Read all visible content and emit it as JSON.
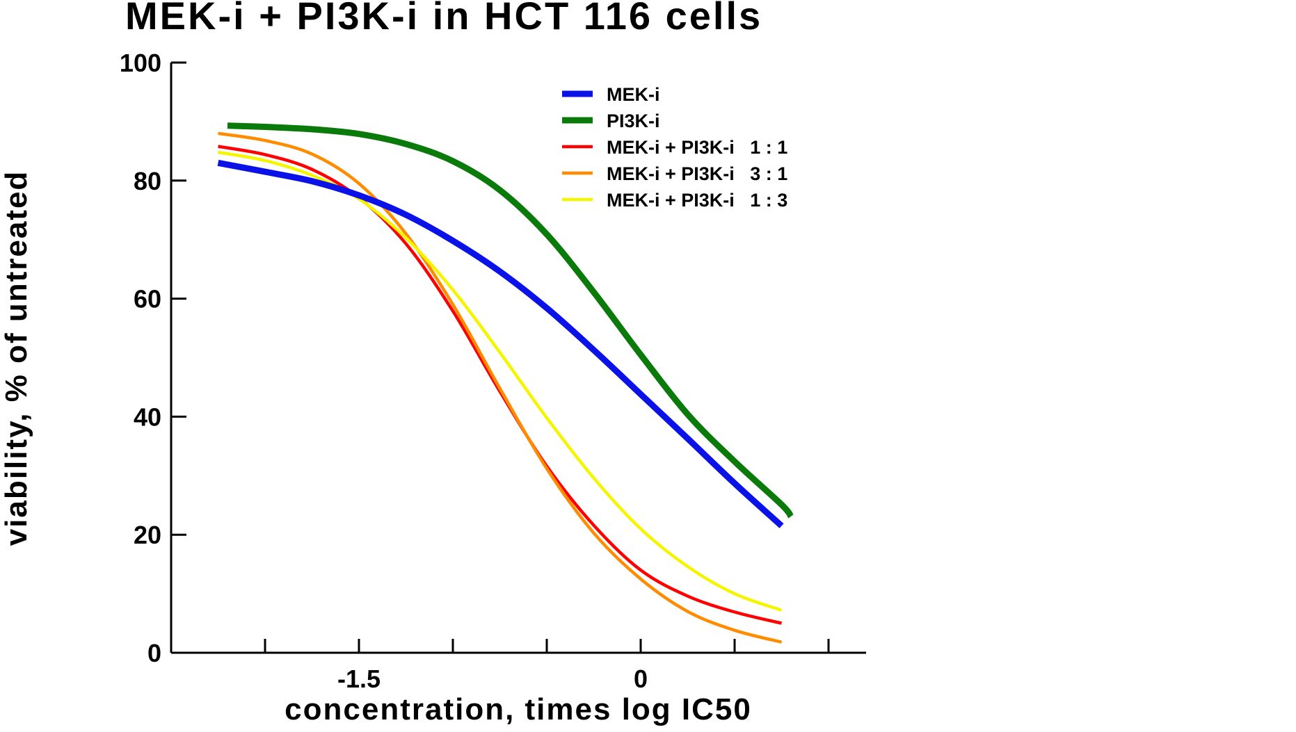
{
  "chart_data": {
    "type": "line",
    "title": "MEK-i + PI3K-i in HCT 116 cells",
    "xlabel": "concentration,  times  log  IC50",
    "ylabel": "viability,  %  of  untreated",
    "xlim": [
      -2.5,
      1.2
    ],
    "ylim": [
      0,
      100
    ],
    "x_tick_labels": [
      {
        "value": -1.5,
        "label": "-1.5"
      },
      {
        "value": 0,
        "label": "0"
      }
    ],
    "x_minor_ticks": [
      -2.0,
      -1.5,
      -1.0,
      -0.5,
      0,
      0.5,
      1.0
    ],
    "y_ticks": [
      0,
      20,
      40,
      60,
      80,
      100
    ],
    "y_tick_labels": [
      "0",
      "20",
      "40",
      "60",
      "80",
      "100"
    ],
    "grid": false,
    "legend_position": "top-right",
    "series": [
      {
        "name": "MEK-i",
        "color": "#0b12e8",
        "width": "thick",
        "x": [
          -2.25,
          -2.0,
          -1.75,
          -1.5,
          -1.25,
          -1.0,
          -0.75,
          -0.5,
          -0.25,
          0.0,
          0.25,
          0.5,
          0.75
        ],
        "y": [
          83.0,
          81.5,
          79.9,
          77.5,
          74.2,
          69.8,
          64.6,
          58.4,
          51.3,
          43.8,
          36.3,
          28.7,
          21.5
        ]
      },
      {
        "name": "PI3K-i",
        "color": "#0a7a0a",
        "width": "thick",
        "x": [
          -2.2,
          -2.0,
          -1.75,
          -1.5,
          -1.25,
          -1.0,
          -0.75,
          -0.5,
          -0.25,
          0.0,
          0.25,
          0.5,
          0.75,
          0.8
        ],
        "y": [
          89.3,
          89.1,
          88.7,
          87.9,
          86.2,
          83.3,
          78.4,
          70.9,
          61.1,
          50.5,
          40.4,
          32.4,
          25.1,
          23.1
        ]
      },
      {
        "name": "MEK-i + PI3K-i   1 : 1",
        "color": "#ff0000",
        "width": "thin",
        "x": [
          -2.25,
          -2.0,
          -1.75,
          -1.5,
          -1.25,
          -1.0,
          -0.75,
          -0.5,
          -0.25,
          0.0,
          0.25,
          0.5,
          0.75
        ],
        "y": [
          85.8,
          84.4,
          81.9,
          77.1,
          69.3,
          57.9,
          44.3,
          31.6,
          21.6,
          14.0,
          9.6,
          6.9,
          5.0
        ]
      },
      {
        "name": "MEK-i + PI3K-i   3 : 1",
        "color": "#ff8c00",
        "width": "thin",
        "x": [
          -2.25,
          -2.0,
          -1.75,
          -1.5,
          -1.25,
          -1.0,
          -0.75,
          -0.5,
          -0.25,
          0.0,
          0.25,
          0.5,
          0.75
        ],
        "y": [
          88.0,
          86.8,
          84.5,
          79.5,
          71.0,
          59.0,
          44.8,
          31.2,
          20.3,
          12.5,
          7.0,
          3.8,
          1.8
        ]
      },
      {
        "name": "MEK-i + PI3K-i   1 : 3",
        "color": "#f5f500",
        "width": "thin",
        "x": [
          -2.25,
          -2.0,
          -1.75,
          -1.5,
          -1.25,
          -1.0,
          -0.75,
          -0.5,
          -0.25,
          0.0,
          0.25,
          0.5,
          0.75
        ],
        "y": [
          84.8,
          83.4,
          80.9,
          76.9,
          70.3,
          61.5,
          50.9,
          39.8,
          29.6,
          21.0,
          14.6,
          10.0,
          7.2
        ]
      }
    ]
  }
}
